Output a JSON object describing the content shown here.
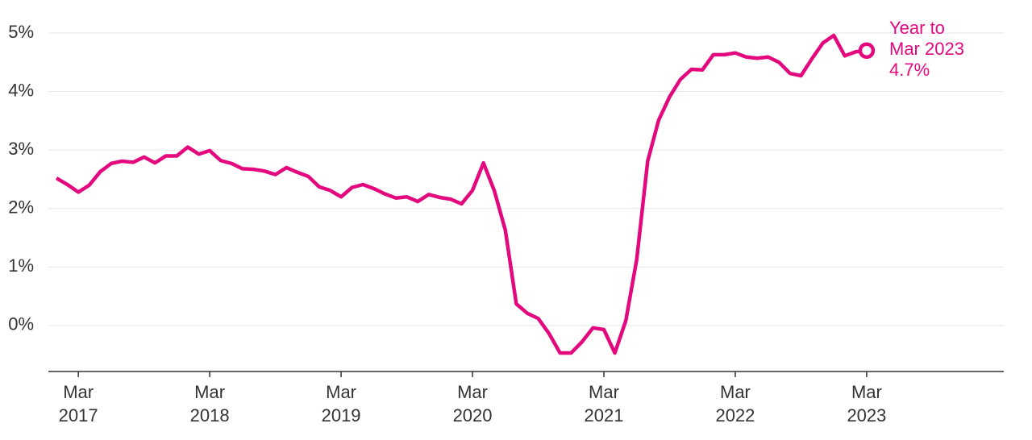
{
  "chart_data": {
    "type": "line",
    "categories": [
      null,
      null,
      "Mar 2017",
      null,
      null,
      null,
      null,
      null,
      null,
      null,
      null,
      null,
      null,
      null,
      "Mar 2018",
      null,
      null,
      null,
      null,
      null,
      null,
      null,
      null,
      null,
      null,
      null,
      "Mar 2019",
      null,
      null,
      null,
      null,
      null,
      null,
      null,
      null,
      null,
      null,
      null,
      "Mar 2020",
      null,
      null,
      null,
      null,
      null,
      null,
      null,
      null,
      null,
      null,
      null,
      "Mar 2021",
      null,
      null,
      null,
      null,
      null,
      null,
      null,
      null,
      null,
      null,
      null,
      "Mar 2022",
      null,
      null,
      null,
      null,
      null,
      null,
      null,
      null,
      null,
      null,
      null,
      "Mar 2023"
    ],
    "values": [
      2.52,
      2.41,
      2.28,
      2.4,
      2.63,
      2.77,
      2.81,
      2.79,
      2.88,
      2.78,
      2.9,
      2.9,
      3.05,
      2.93,
      2.99,
      2.82,
      2.77,
      2.68,
      2.67,
      2.64,
      2.58,
      2.7,
      2.62,
      2.55,
      2.37,
      2.31,
      2.2,
      2.36,
      2.41,
      2.34,
      2.25,
      2.18,
      2.2,
      2.12,
      2.24,
      2.19,
      2.16,
      2.08,
      2.31,
      2.78,
      2.3,
      1.63,
      0.37,
      0.21,
      0.12,
      -0.14,
      -0.47,
      -0.47,
      -0.28,
      -0.04,
      -0.07,
      -0.47,
      0.08,
      1.13,
      2.81,
      3.51,
      3.91,
      4.21,
      4.38,
      4.37,
      4.63,
      4.63,
      4.66,
      4.59,
      4.57,
      4.59,
      4.5,
      4.31,
      4.27,
      4.56,
      4.83,
      4.96,
      4.61,
      4.68,
      4.7
    ],
    "color": "#e4087e",
    "ylim": [
      -0.8,
      5.2
    ],
    "yticks": [
      {
        "value": 0,
        "label": "0%"
      },
      {
        "value": 1,
        "label": "1%"
      },
      {
        "value": 2,
        "label": "2%"
      },
      {
        "value": 3,
        "label": "3%"
      },
      {
        "value": 4,
        "label": "4%"
      },
      {
        "value": 5,
        "label": "5%"
      }
    ],
    "grid": true,
    "annotation": [
      "Year to",
      "Mar 2023",
      "4.7%"
    ]
  }
}
